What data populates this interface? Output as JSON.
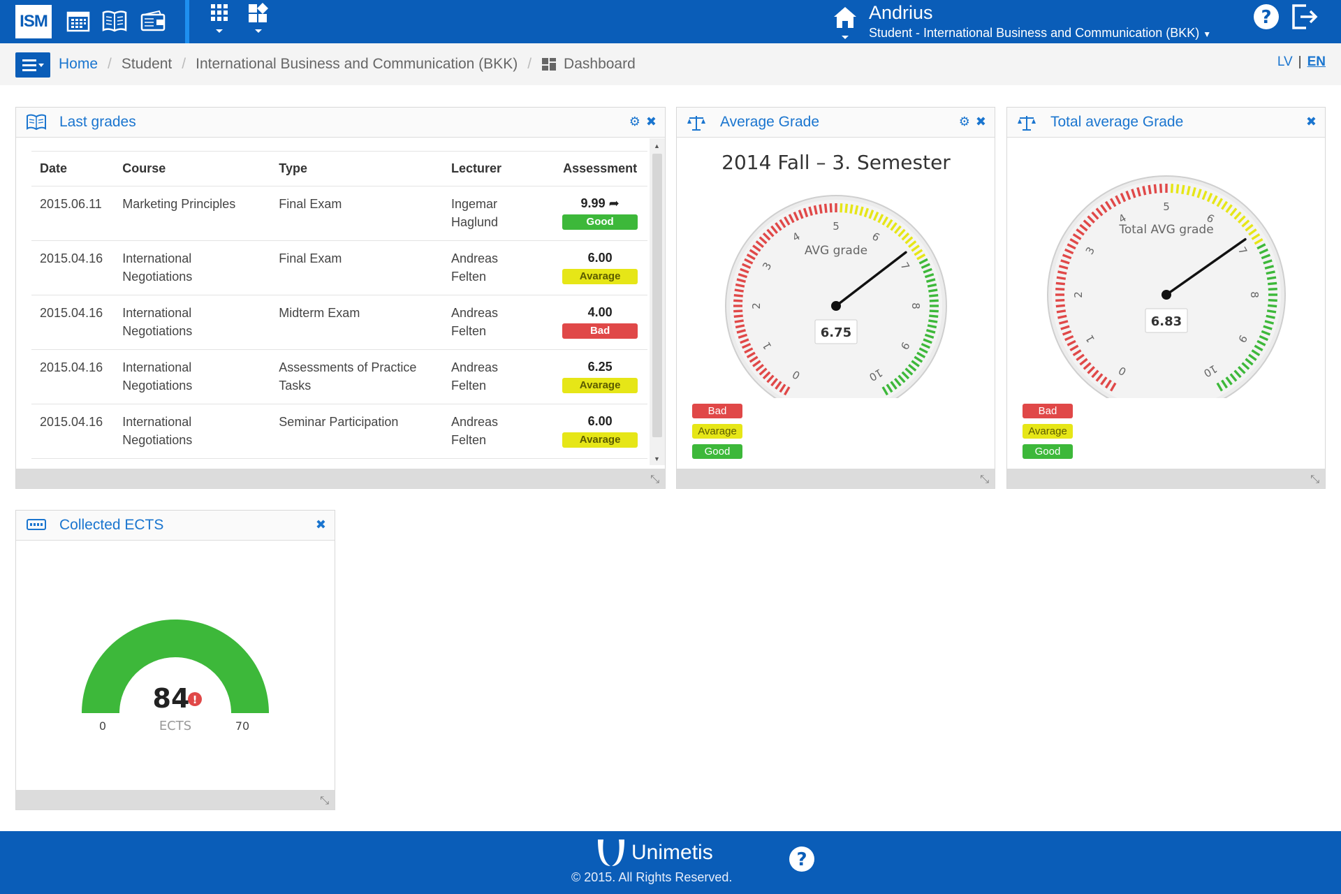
{
  "topbar": {
    "logo_text": "ISM",
    "icons": [
      "calendar-icon",
      "book-icon",
      "wallet-icon",
      "apps-grid-icon",
      "widgets-icon"
    ],
    "user_name": "Andrius",
    "user_role": "Student - International Business and Communication (BKK)"
  },
  "breadcrumb": {
    "items": [
      "Home",
      "Student",
      "International Business and Communication (BKK)",
      "Dashboard"
    ]
  },
  "lang": {
    "lv": "LV",
    "en": "EN",
    "separator": "|"
  },
  "last_grades": {
    "title": "Last grades",
    "columns": [
      "Date",
      "Course",
      "Type",
      "Lecturer",
      "Assessment"
    ],
    "rows": [
      {
        "date": "2015.06.11",
        "course_1": "Marketing Principles",
        "course_2": "",
        "type_1": "Final Exam",
        "type_2": "",
        "lecturer_1": "Ingemar",
        "lecturer_2": "Haglund",
        "value": "9.99",
        "label": "Good",
        "level": "good"
      },
      {
        "date": "2015.04.16",
        "course_1": "International",
        "course_2": "Negotiations",
        "type_1": "Final Exam",
        "type_2": "",
        "lecturer_1": "Andreas",
        "lecturer_2": "Felten",
        "value": "6.00",
        "label": "Avarage",
        "level": "avg"
      },
      {
        "date": "2015.04.16",
        "course_1": "International",
        "course_2": "Negotiations",
        "type_1": "Midterm Exam",
        "type_2": "",
        "lecturer_1": "Andreas",
        "lecturer_2": "Felten",
        "value": "4.00",
        "label": "Bad",
        "level": "bad"
      },
      {
        "date": "2015.04.16",
        "course_1": "International",
        "course_2": "Negotiations",
        "type_1": "Assessments of Practice",
        "type_2": "Tasks",
        "lecturer_1": "Andreas",
        "lecturer_2": "Felten",
        "value": "6.25",
        "label": "Avarage",
        "level": "avg"
      },
      {
        "date": "2015.04.16",
        "course_1": "International",
        "course_2": "Negotiations",
        "type_1": "Seminar Participation",
        "type_2": "",
        "lecturer_1": "Andreas",
        "lecturer_2": "Felten",
        "value": "6.00",
        "label": "Avarage",
        "level": "avg"
      }
    ]
  },
  "average_grade": {
    "title": "Average Grade",
    "subtitle": "2014 Fall – 3. Semester",
    "gauge_label": "AVG grade",
    "value_text": "6.75"
  },
  "total_average": {
    "title": "Total average Grade",
    "gauge_label": "Total AVG grade",
    "value_text": "6.83"
  },
  "legend": {
    "bad": "Bad",
    "avg": "Avarage",
    "good": "Good"
  },
  "ects": {
    "title": "Collected ECTS",
    "value_text": "84",
    "unit": "ECTS",
    "min_text": "0",
    "max_text": "70"
  },
  "colors": {
    "primary": "#0a5db8",
    "good": "#3db83a",
    "avg": "#e6e617",
    "bad": "#e04848"
  },
  "footer": {
    "brand": "Unimetis",
    "copyright": "© 2015. All Rights Reserved."
  },
  "chart_data": [
    {
      "type": "gauge",
      "title": "2014 Fall – 3. Semester",
      "label": "AVG grade",
      "value": 6.75,
      "range": [
        0,
        10
      ],
      "ticks": [
        "0",
        "1",
        "2",
        "3",
        "4",
        "5",
        "6",
        "7",
        "8",
        "9",
        "10"
      ],
      "bands": [
        {
          "from": 0,
          "to": 5,
          "color": "#e04848"
        },
        {
          "from": 5,
          "to": 7,
          "color": "#e6e617"
        },
        {
          "from": 7,
          "to": 10,
          "color": "#3db83a"
        }
      ]
    },
    {
      "type": "gauge",
      "title": "",
      "label": "Total AVG grade",
      "value": 6.83,
      "range": [
        0,
        10
      ],
      "ticks": [
        "0",
        "1",
        "2",
        "3",
        "4",
        "5",
        "6",
        "7",
        "8",
        "9",
        "10"
      ],
      "bands": [
        {
          "from": 0,
          "to": 5,
          "color": "#e04848"
        },
        {
          "from": 5,
          "to": 7,
          "color": "#e6e617"
        },
        {
          "from": 7,
          "to": 10,
          "color": "#3db83a"
        }
      ]
    },
    {
      "type": "solid-gauge",
      "label": "ECTS",
      "value": 84,
      "range": [
        0,
        70
      ],
      "color": "#3db83a"
    }
  ]
}
